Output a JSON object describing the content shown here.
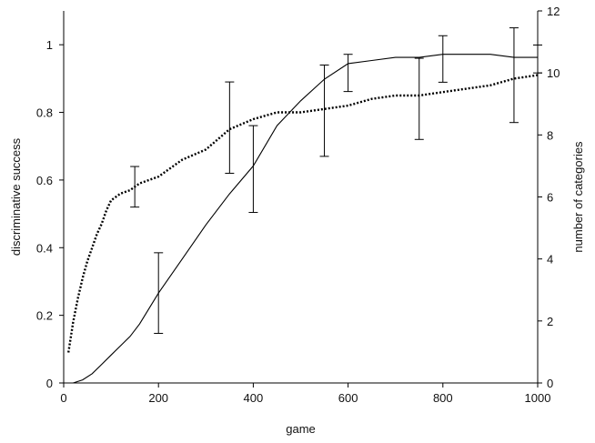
{
  "chart_data": {
    "type": "line",
    "title": "",
    "xlabel": "game",
    "ylabel": "discriminative success",
    "y2label": "number of categories",
    "xlim": [
      0,
      1000
    ],
    "ylim": [
      0,
      1.1
    ],
    "y2lim": [
      0,
      12
    ],
    "x_ticks": [
      "0",
      "200",
      "400",
      "600",
      "800",
      "1000"
    ],
    "y_ticks": [
      "0",
      "0.2",
      "0.4",
      "0.6",
      "0.8",
      "1"
    ],
    "y2_ticks": [
      "0",
      "2",
      "4",
      "6",
      "8",
      "10",
      "12"
    ],
    "grid": false,
    "legend": "none",
    "series": [
      {
        "axis": "right",
        "style": "solid",
        "color": "#000000",
        "x": [
          0,
          20,
          40,
          60,
          80,
          100,
          120,
          140,
          160,
          180,
          200,
          250,
          300,
          350,
          400,
          450,
          500,
          550,
          600,
          650,
          700,
          750,
          800,
          850,
          900,
          950,
          1000
        ],
        "y": [
          0,
          0,
          0.1,
          0.3,
          0.6,
          0.9,
          1.2,
          1.5,
          1.9,
          2.4,
          2.9,
          4.0,
          5.1,
          6.1,
          7.0,
          8.3,
          9.1,
          9.8,
          10.3,
          10.4,
          10.5,
          10.5,
          10.6,
          10.6,
          10.6,
          10.5,
          10.5
        ],
        "error_bars": [
          {
            "x": 200,
            "y": 2.9,
            "low": 1.6,
            "high": 4.2
          },
          {
            "x": 400,
            "y": 7.0,
            "low": 5.5,
            "high": 8.3
          },
          {
            "x": 600,
            "y": 10.3,
            "low": 9.4,
            "high": 10.6
          },
          {
            "x": 800,
            "y": 10.6,
            "low": 9.7,
            "high": 11.2
          },
          {
            "x": 1000,
            "y": 10.5,
            "low": 10.0,
            "high": 10.9
          }
        ]
      },
      {
        "axis": "left",
        "style": "dotted",
        "color": "#000000",
        "x": [
          10,
          20,
          30,
          40,
          50,
          60,
          70,
          80,
          90,
          100,
          120,
          140,
          160,
          180,
          200,
          250,
          300,
          350,
          400,
          450,
          500,
          550,
          600,
          650,
          700,
          750,
          800,
          850,
          900,
          950,
          1000
        ],
        "y": [
          0.09,
          0.18,
          0.25,
          0.31,
          0.36,
          0.4,
          0.44,
          0.47,
          0.51,
          0.54,
          0.56,
          0.57,
          0.59,
          0.6,
          0.61,
          0.66,
          0.69,
          0.75,
          0.78,
          0.8,
          0.8,
          0.81,
          0.82,
          0.84,
          0.85,
          0.85,
          0.86,
          0.87,
          0.88,
          0.9,
          0.91
        ],
        "error_bars": [
          {
            "x": 150,
            "y": 0.58,
            "low": 0.52,
            "high": 0.64
          },
          {
            "x": 350,
            "y": 0.75,
            "low": 0.62,
            "high": 0.89
          },
          {
            "x": 550,
            "y": 0.81,
            "low": 0.67,
            "high": 0.94
          },
          {
            "x": 750,
            "y": 0.85,
            "low": 0.72,
            "high": 0.96
          },
          {
            "x": 950,
            "y": 0.9,
            "low": 0.77,
            "high": 1.05
          }
        ]
      }
    ]
  }
}
